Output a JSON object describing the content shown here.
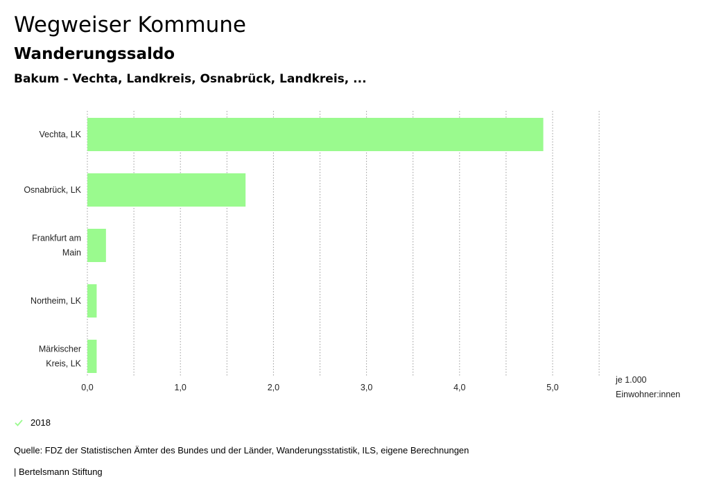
{
  "header": {
    "title": "Wegweiser Kommune",
    "subtitle": "Wanderungssaldo",
    "selection": "Bakum - Vechta, Landkreis, Osnabrück, Landkreis, ..."
  },
  "chart_data": {
    "type": "bar",
    "orientation": "horizontal",
    "categories": [
      [
        "Vechta, LK"
      ],
      [
        "Osnabrück, LK"
      ],
      [
        "Frankfurt am",
        "Main"
      ],
      [
        "Northeim, LK"
      ],
      [
        "Märkischer",
        "Kreis, LK"
      ]
    ],
    "series": [
      {
        "name": "2018",
        "values": [
          4.9,
          1.7,
          0.2,
          0.1,
          0.1
        ]
      }
    ],
    "xlim": [
      0,
      5.5
    ],
    "xticks": [
      "0,0",
      "1,0",
      "2,0",
      "3,0",
      "4,0",
      "5,0"
    ],
    "xlabel": [
      "je 1.000",
      "Einwohner:innen"
    ],
    "bar_color": "#9afa8e",
    "grid_color": "#999999"
  },
  "legend": {
    "label": "2018",
    "color": "#9afa8e"
  },
  "footer": {
    "source": "Quelle: FDZ der Statistischen Ämter des Bundes und der Länder, Wanderungsstatistik, ILS, eigene Berechnungen",
    "publisher": "| Bertelsmann Stiftung"
  }
}
